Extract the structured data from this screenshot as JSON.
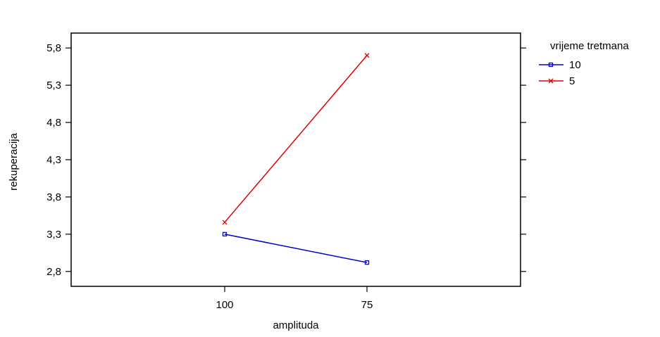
{
  "chart_data": {
    "type": "line",
    "title": "",
    "xlabel": "amplituda",
    "ylabel": "rekuperacija",
    "categories": [
      "100",
      "75"
    ],
    "ylim": [
      2.6,
      6.0
    ],
    "yticks": [
      "5,8",
      "5,3",
      "4,8",
      "4,3",
      "3,8",
      "3,3",
      "2,8"
    ],
    "ytick_values": [
      5.8,
      5.3,
      4.8,
      4.3,
      3.8,
      3.3,
      2.8
    ],
    "legend_title": "vrijeme tretmana",
    "legend_position": "right",
    "grid": false,
    "series": [
      {
        "name": "10",
        "values": [
          3.3,
          2.92
        ],
        "color": "#0000cc",
        "marker": "square"
      },
      {
        "name": "5",
        "values": [
          3.46,
          5.7
        ],
        "color": "#dd0000",
        "marker": "x"
      }
    ]
  }
}
